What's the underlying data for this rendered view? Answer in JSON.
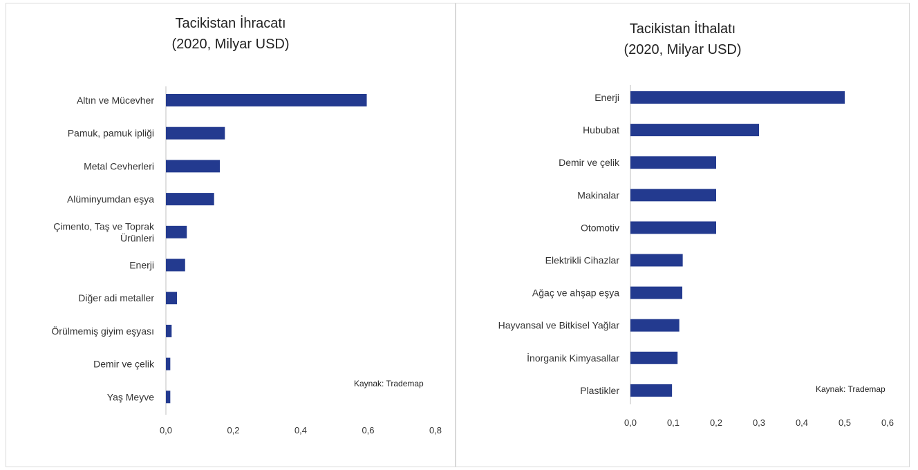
{
  "accent_color": "#233a8f",
  "charts": {
    "exports": {
      "title_line1": "Tacikistan İhracatı",
      "title_line2": "(2020, Milyar USD)",
      "source": "Kaynak: Trademap"
    },
    "imports": {
      "title_line1": "Tacikistan İthalatı",
      "title_line2": "(2020, Milyar USD)",
      "source": "Kaynak: Trademap"
    }
  },
  "chart_data": [
    {
      "type": "bar",
      "orientation": "horizontal",
      "title": "Tacikistan İhracatı (2020, Milyar USD)",
      "categories": [
        "Altın ve Mücevher",
        "Pamuk, pamuk ipliği",
        "Metal Cevherleri",
        "Alüminyumdan eşya",
        "Çimento, Taş ve Toprak Ürünleri",
        "Enerji",
        "Diğer adi metaller",
        "Örülmemiş giyim eşyası",
        "Demir ve çelik",
        "Yaş Meyve"
      ],
      "category_lines": [
        [
          "Altın ve Mücevher"
        ],
        [
          "Pamuk, pamuk ipliği"
        ],
        [
          "Metal Cevherleri"
        ],
        [
          "Alüminyumdan eşya"
        ],
        [
          "Çimento, Taş ve Toprak",
          "Ürünleri"
        ],
        [
          "Enerji"
        ],
        [
          "Diğer adi metaller"
        ],
        [
          "Örülmemiş giyim eşyası"
        ],
        [
          "Demir ve çelik"
        ],
        [
          "Yaş Meyve"
        ]
      ],
      "values": [
        0.596,
        0.175,
        0.16,
        0.143,
        0.062,
        0.057,
        0.033,
        0.017,
        0.013,
        0.013
      ],
      "xlim": [
        0,
        0.8
      ],
      "xticks": [
        "0,0",
        "0,2",
        "0,4",
        "0,6",
        "0,8"
      ],
      "tick_values": [
        0,
        0.2,
        0.4,
        0.6,
        0.8
      ],
      "grid": false,
      "color": "#233a8f"
    },
    {
      "type": "bar",
      "orientation": "horizontal",
      "title": "Tacikistan İthalatı (2020, Milyar USD)",
      "categories": [
        "Enerji",
        "Hububat",
        "Demir ve çelik",
        "Makinalar",
        "Otomotiv",
        "Elektrikli Cihazlar",
        "Ağaç ve ahşap eşya",
        "Hayvansal ve Bitkisel Yağlar",
        "İnorganik Kimyasallar",
        "Plastikler"
      ],
      "category_lines": [
        [
          "Enerji"
        ],
        [
          "Hububat"
        ],
        [
          "Demir ve çelik"
        ],
        [
          "Makinalar"
        ],
        [
          "Otomotiv"
        ],
        [
          "Elektrikli Cihazlar"
        ],
        [
          "Ağaç ve ahşap eşya"
        ],
        [
          "Hayvansal ve Bitkisel Yağlar"
        ],
        [
          "İnorganik Kimyasallar"
        ],
        [
          "Plastikler"
        ]
      ],
      "values": [
        0.5,
        0.3,
        0.2,
        0.2,
        0.2,
        0.122,
        0.121,
        0.114,
        0.11,
        0.097
      ],
      "xlim": [
        0,
        0.6
      ],
      "xticks": [
        "0,0",
        "0,1",
        "0,2",
        "0,3",
        "0,4",
        "0,5",
        "0,6"
      ],
      "tick_values": [
        0,
        0.1,
        0.2,
        0.3,
        0.4,
        0.5,
        0.6
      ],
      "grid": false,
      "color": "#233a8f"
    }
  ]
}
